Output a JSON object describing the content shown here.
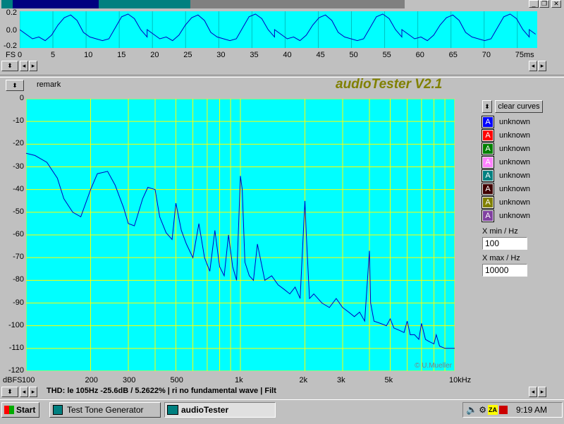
{
  "window": {
    "title": "audioTester"
  },
  "scope": {
    "y_ticks": [
      "0.2",
      "0.0",
      "-0.2"
    ],
    "fs_label": "FS",
    "x_ticks": [
      "0",
      "5",
      "10",
      "15",
      "20",
      "25",
      "30",
      "35",
      "40",
      "45",
      "50",
      "55",
      "60",
      "65",
      "70",
      "75ms"
    ]
  },
  "remark_label": "remark",
  "app_title": "audioTester V2.1",
  "spectrum": {
    "y_ticks": [
      "0",
      "-10",
      "-20",
      "-30",
      "-40",
      "-50",
      "-60",
      "-70",
      "-80",
      "-90",
      "-100",
      "-110",
      "-120"
    ],
    "unit_label": "dBFS",
    "x_ticks": [
      "100",
      "200",
      "300",
      "500",
      "1k",
      "2k",
      "3k",
      "5k",
      "10kHz"
    ],
    "copyright": "© U.Mueller",
    "line_color": "#0000c0",
    "bg_color": "#00ffff",
    "grid_color": "#ffff00"
  },
  "chart_data": [
    {
      "type": "line",
      "title": "",
      "xlabel": "ms",
      "ylabel": "FS",
      "xlim": [
        0,
        78
      ],
      "ylim": [
        -0.2,
        0.2
      ],
      "series": [
        {
          "x": [
            0,
            1,
            2,
            3,
            4,
            5,
            6,
            7,
            8,
            9,
            10,
            11,
            12,
            13,
            14,
            15,
            16,
            17,
            18,
            19,
            20
          ],
          "y": [
            0.0,
            -0.05,
            -0.1,
            -0.08,
            -0.12,
            -0.06,
            0.05,
            0.13,
            0.16,
            0.1,
            -0.03,
            -0.08,
            -0.1,
            -0.12,
            -0.1,
            0.02,
            0.14,
            0.17,
            0.12,
            0.0,
            -0.08
          ]
        }
      ]
    },
    {
      "type": "line",
      "title": "",
      "xlabel": "Hz",
      "ylabel": "dBFS",
      "xscale": "log",
      "xlim": [
        100,
        10000
      ],
      "ylim": [
        -120,
        0
      ],
      "grid": true,
      "series": [
        {
          "x": [
            100,
            110,
            125,
            140,
            150,
            165,
            180,
            200,
            215,
            240,
            260,
            285,
            300,
            320,
            350,
            370,
            400,
            420,
            450,
            480,
            500,
            530,
            560,
            600,
            640,
            680,
            720,
            760,
            800,
            840,
            880,
            920,
            960,
            1000,
            1020,
            1050,
            1100,
            1150,
            1200,
            1300,
            1400,
            1500,
            1600,
            1700,
            1800,
            1900,
            2000,
            2030,
            2100,
            2200,
            2400,
            2600,
            2800,
            3000,
            3200,
            3400,
            3600,
            3800,
            4000,
            4050,
            4200,
            4500,
            4800,
            5000,
            5200,
            5500,
            5800,
            6000,
            6200,
            6500,
            6800,
            7000,
            7300,
            7600,
            8000,
            8200,
            8500,
            9000,
            9500,
            10000
          ],
          "y": [
            -24,
            -25,
            -28,
            -35,
            -44,
            -50,
            -52,
            -40,
            -33,
            -32,
            -38,
            -48,
            -55,
            -56,
            -44,
            -39,
            -40,
            -52,
            -59,
            -62,
            -46,
            -58,
            -64,
            -70,
            -55,
            -70,
            -76,
            -58,
            -74,
            -78,
            -60,
            -74,
            -80,
            -34,
            -40,
            -72,
            -78,
            -80,
            -64,
            -80,
            -78,
            -82,
            -84,
            -86,
            -83,
            -88,
            -45,
            -60,
            -88,
            -86,
            -90,
            -92,
            -88,
            -92,
            -94,
            -96,
            -94,
            -98,
            -67,
            -90,
            -98,
            -99,
            -100,
            -97,
            -101,
            -102,
            -103,
            -98,
            -104,
            -104,
            -106,
            -99,
            -106,
            -107,
            -108,
            -104,
            -109,
            -110,
            -110,
            -110
          ]
        }
      ]
    }
  ],
  "curves": {
    "clear_label": "clear curves",
    "items": [
      {
        "letter": "A",
        "label": "unknown",
        "color": "#0000ff"
      },
      {
        "letter": "A",
        "label": "unknown",
        "color": "#ff0000"
      },
      {
        "letter": "A",
        "label": "unknown",
        "color": "#008000"
      },
      {
        "letter": "A",
        "label": "unknown",
        "color": "#ff80ff"
      },
      {
        "letter": "A",
        "label": "unknown",
        "color": "#008080"
      },
      {
        "letter": "A",
        "label": "unknown",
        "color": "#400000"
      },
      {
        "letter": "A",
        "label": "unknown",
        "color": "#808000"
      },
      {
        "letter": "A",
        "label": "unknown",
        "color": "#8040a0"
      }
    ]
  },
  "xmin": {
    "label": "X min / Hz",
    "value": "100"
  },
  "xmax": {
    "label": "X max / Hz",
    "value": "10000"
  },
  "status": "THD:  le 105Hz -25.6dB / 5.2622%  |   ri   no fundamental wave  |    Filt",
  "taskbar": {
    "start": "Start",
    "items": [
      {
        "label": "Test Tone Generator"
      },
      {
        "label": "audioTester"
      }
    ],
    "clock": "9:19 AM"
  }
}
